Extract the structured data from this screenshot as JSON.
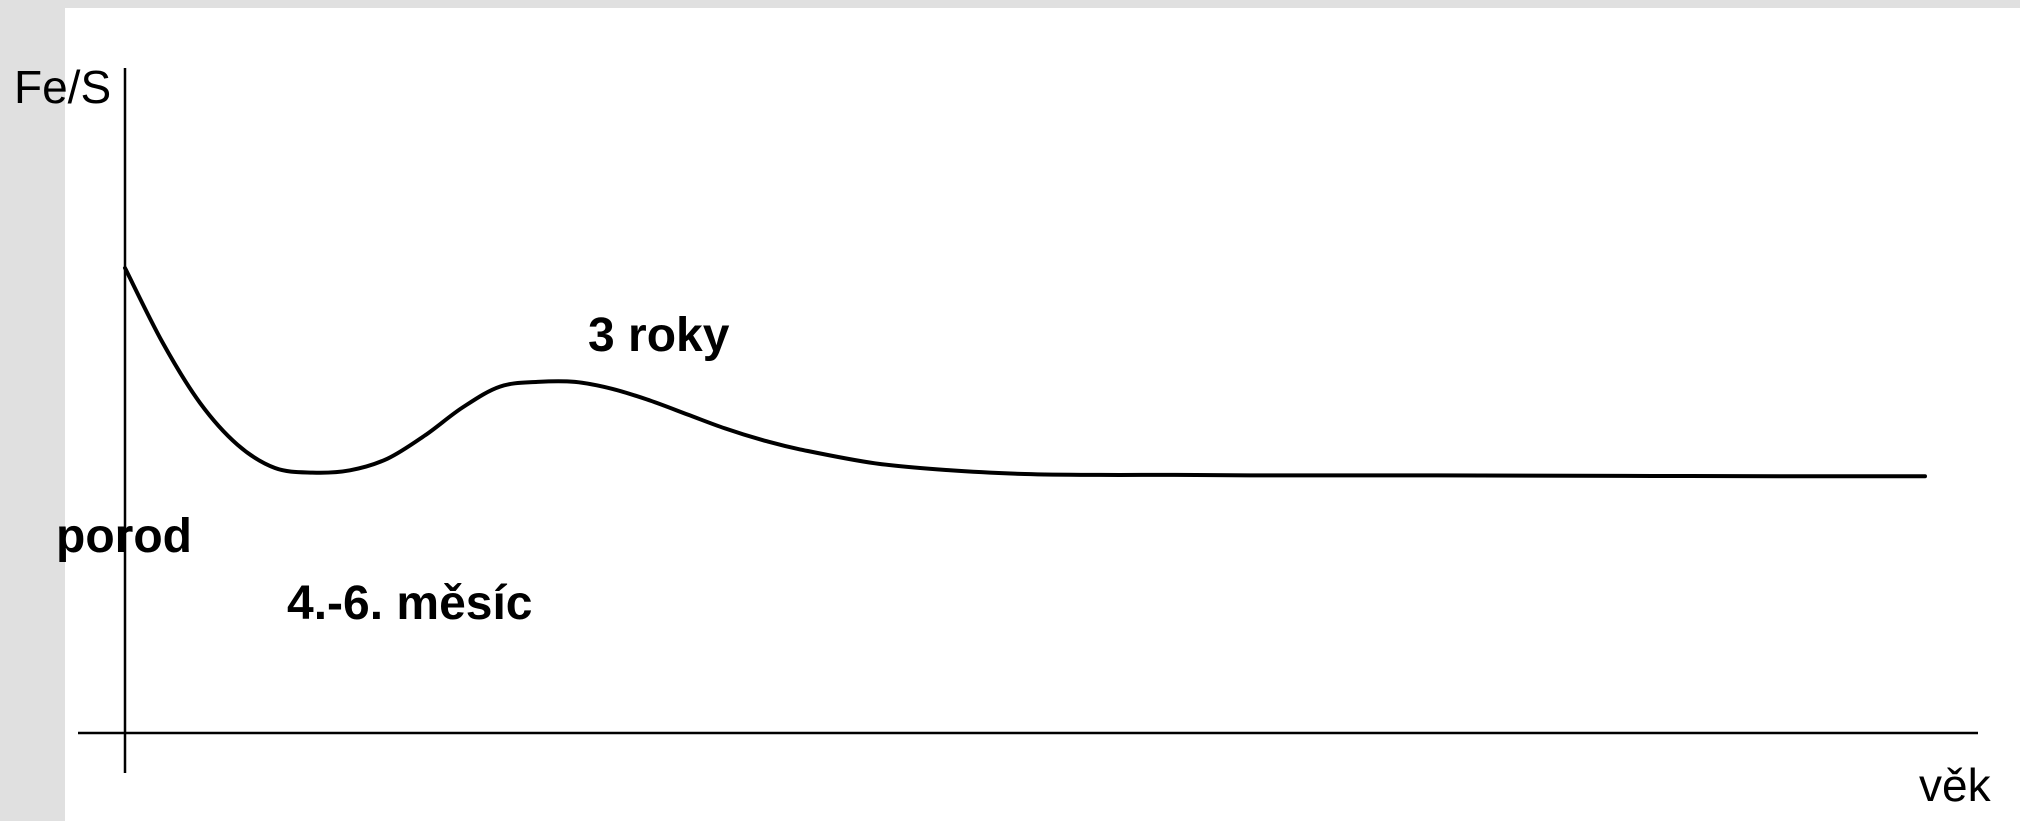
{
  "chart_data": {
    "type": "line",
    "title": "",
    "xlabel": "věk",
    "ylabel": "Fe/S",
    "xlim": [
      0,
      48
    ],
    "ylim": [
      0,
      100
    ],
    "grid": false,
    "legend": "none",
    "line_color": "#000000",
    "axis_color": "#000000",
    "series": [
      {
        "x": [
          0,
          1,
          2,
          3,
          4,
          5,
          6,
          7,
          8,
          9,
          10,
          11,
          12,
          13,
          14,
          15,
          16,
          17,
          18,
          20,
          22,
          24,
          26,
          28,
          30,
          35,
          40,
          45,
          48
        ],
        "y": [
          100,
          84,
          71,
          62,
          57,
          56,
          56.5,
          59,
          64,
          70,
          74.5,
          75.5,
          75.5,
          74,
          71.5,
          68.5,
          65.5,
          63,
          61,
          58,
          56.5,
          55.7,
          55.5,
          55.5,
          55.4,
          55.4,
          55.3,
          55.2,
          55.2
        ]
      }
    ],
    "annotations": [
      {
        "text": "porod",
        "x": 0
      },
      {
        "text": "4.-6. měsíc",
        "x": 5
      },
      {
        "text": "3 roky",
        "x": 11.5
      }
    ]
  }
}
